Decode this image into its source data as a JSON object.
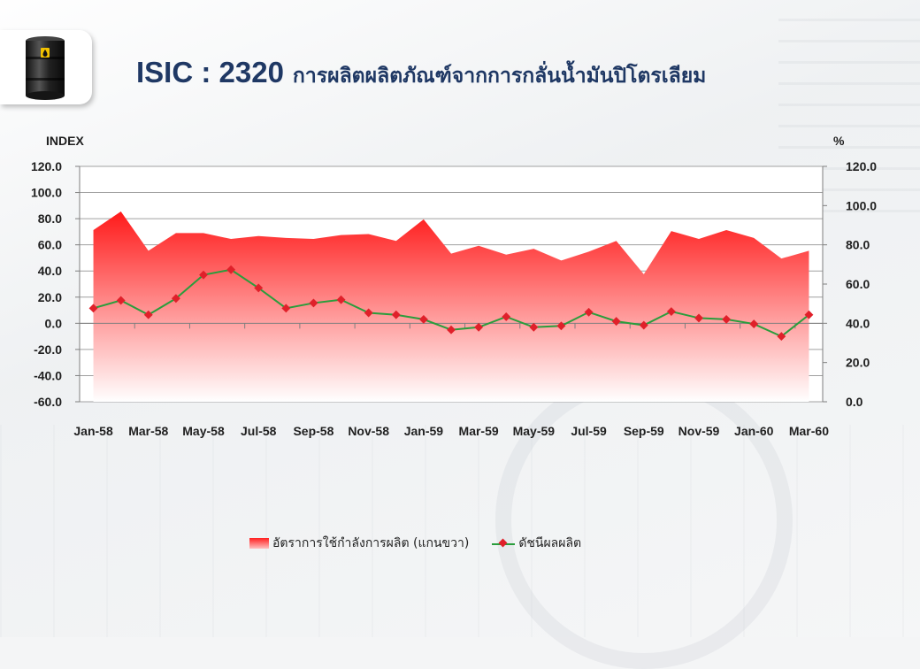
{
  "title": {
    "main": "ISIC : 2320",
    "sub": "การผลิตผลิตภัณฑ์จากการกลั่นน้ำมันปิโตรเลียม"
  },
  "logo": {
    "icon": "oil-barrel-icon"
  },
  "chart_data": {
    "type": "line+area",
    "left_axis": {
      "label": "INDEX",
      "ticks": [
        "120.0",
        "100.0",
        "80.0",
        "60.0",
        "40.0",
        "20.0",
        "0.0",
        "-20.0",
        "-40.0",
        "-60.0"
      ],
      "ylim": [
        -60,
        120
      ]
    },
    "right_axis": {
      "label": "%",
      "ticks": [
        "120.0",
        "100.0",
        "80.0",
        "60.0",
        "40.0",
        "20.0",
        "0.0"
      ],
      "ylim": [
        0,
        120
      ]
    },
    "x_tick_labels": [
      "Jan-58",
      "Mar-58",
      "May-58",
      "Jul-58",
      "Sep-58",
      "Nov-58",
      "Jan-59",
      "Mar-59",
      "May-59",
      "Jul-59",
      "Sep-59",
      "Nov-59",
      "Jan-60",
      "Mar-60"
    ],
    "x": [
      "Jan-58",
      "Feb-58",
      "Mar-58",
      "Apr-58",
      "May-58",
      "Jun-58",
      "Jul-58",
      "Aug-58",
      "Sep-58",
      "Oct-58",
      "Nov-58",
      "Dec-58",
      "Jan-59",
      "Feb-59",
      "Mar-59",
      "Apr-59",
      "May-59",
      "Jun-59",
      "Jul-59",
      "Aug-59",
      "Sep-59",
      "Oct-59",
      "Nov-59",
      "Dec-59",
      "Jan-60",
      "Feb-60",
      "Mar-60"
    ],
    "series": [
      {
        "name": "อัตราการใช้กำลังการผลิต (แกนขวา)",
        "axis": "right",
        "type": "area",
        "color": "#ff2020",
        "values": [
          87.5,
          97,
          77,
          86,
          86,
          83,
          84.5,
          83.5,
          83,
          85,
          85.5,
          82,
          93,
          75.5,
          79.5,
          75,
          78,
          72,
          76.5,
          82,
          65,
          87,
          83,
          87.5,
          83.5,
          73,
          77
        ]
      },
      {
        "name": "ดัชนีผลผลิต",
        "axis": "left",
        "type": "line",
        "color": "#2a9d3c",
        "marker_color": "#e0202a",
        "values": [
          11.5,
          17.5,
          6.5,
          19,
          37,
          41,
          27,
          11.5,
          15.5,
          18,
          8,
          6.5,
          3,
          -5,
          -3,
          5,
          -3,
          -2,
          8.5,
          1.5,
          -1.5,
          9,
          4,
          3,
          -0.5,
          -10,
          6.5
        ]
      }
    ],
    "legend_position": "bottom",
    "grid": true
  }
}
